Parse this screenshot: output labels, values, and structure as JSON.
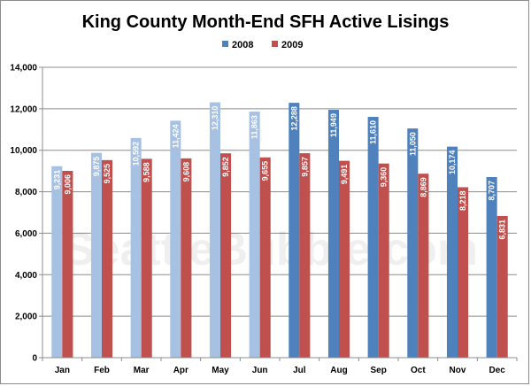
{
  "chart_data": {
    "type": "bar",
    "title": "King County Month-End SFH Active Lisings",
    "watermark": "SeattleBubble.com",
    "categories": [
      "Jan",
      "Feb",
      "Mar",
      "Apr",
      "May",
      "Jun",
      "Jul",
      "Aug",
      "Sep",
      "Oct",
      "Nov",
      "Dec"
    ],
    "series": [
      {
        "name": "2008",
        "values": [
          9231,
          9875,
          10592,
          11424,
          12310,
          11863,
          12288,
          11949,
          11610,
          11050,
          10174,
          8707
        ],
        "labels": [
          "9,231",
          "9,875",
          "10,592",
          "11,424",
          "12,310",
          "11,863",
          "12,288",
          "11,949",
          "11,610",
          "11,050",
          "10,174",
          "8,707"
        ],
        "color": "#4f81bd",
        "faded_color": "#a7c1e2",
        "faded_months": 6
      },
      {
        "name": "2009",
        "values": [
          9006,
          9525,
          9588,
          9608,
          9852,
          9655,
          9857,
          9491,
          9360,
          8869,
          8218,
          6831
        ],
        "labels": [
          "9,006",
          "9,525",
          "9,588",
          "9,608",
          "9,852",
          "9,655",
          "9,857",
          "9,491",
          "9,360",
          "8,869",
          "8,218",
          "6,831"
        ],
        "color": "#c0504d"
      }
    ],
    "ylim": [
      0,
      14000
    ],
    "yticks": [
      0,
      2000,
      4000,
      6000,
      8000,
      10000,
      12000,
      14000
    ],
    "ytick_labels": [
      "0",
      "2,000",
      "4,000",
      "6,000",
      "8,000",
      "10,000",
      "12,000",
      "14,000"
    ],
    "grid": true,
    "legend_position": "top-center",
    "xlabel": "",
    "ylabel": ""
  }
}
